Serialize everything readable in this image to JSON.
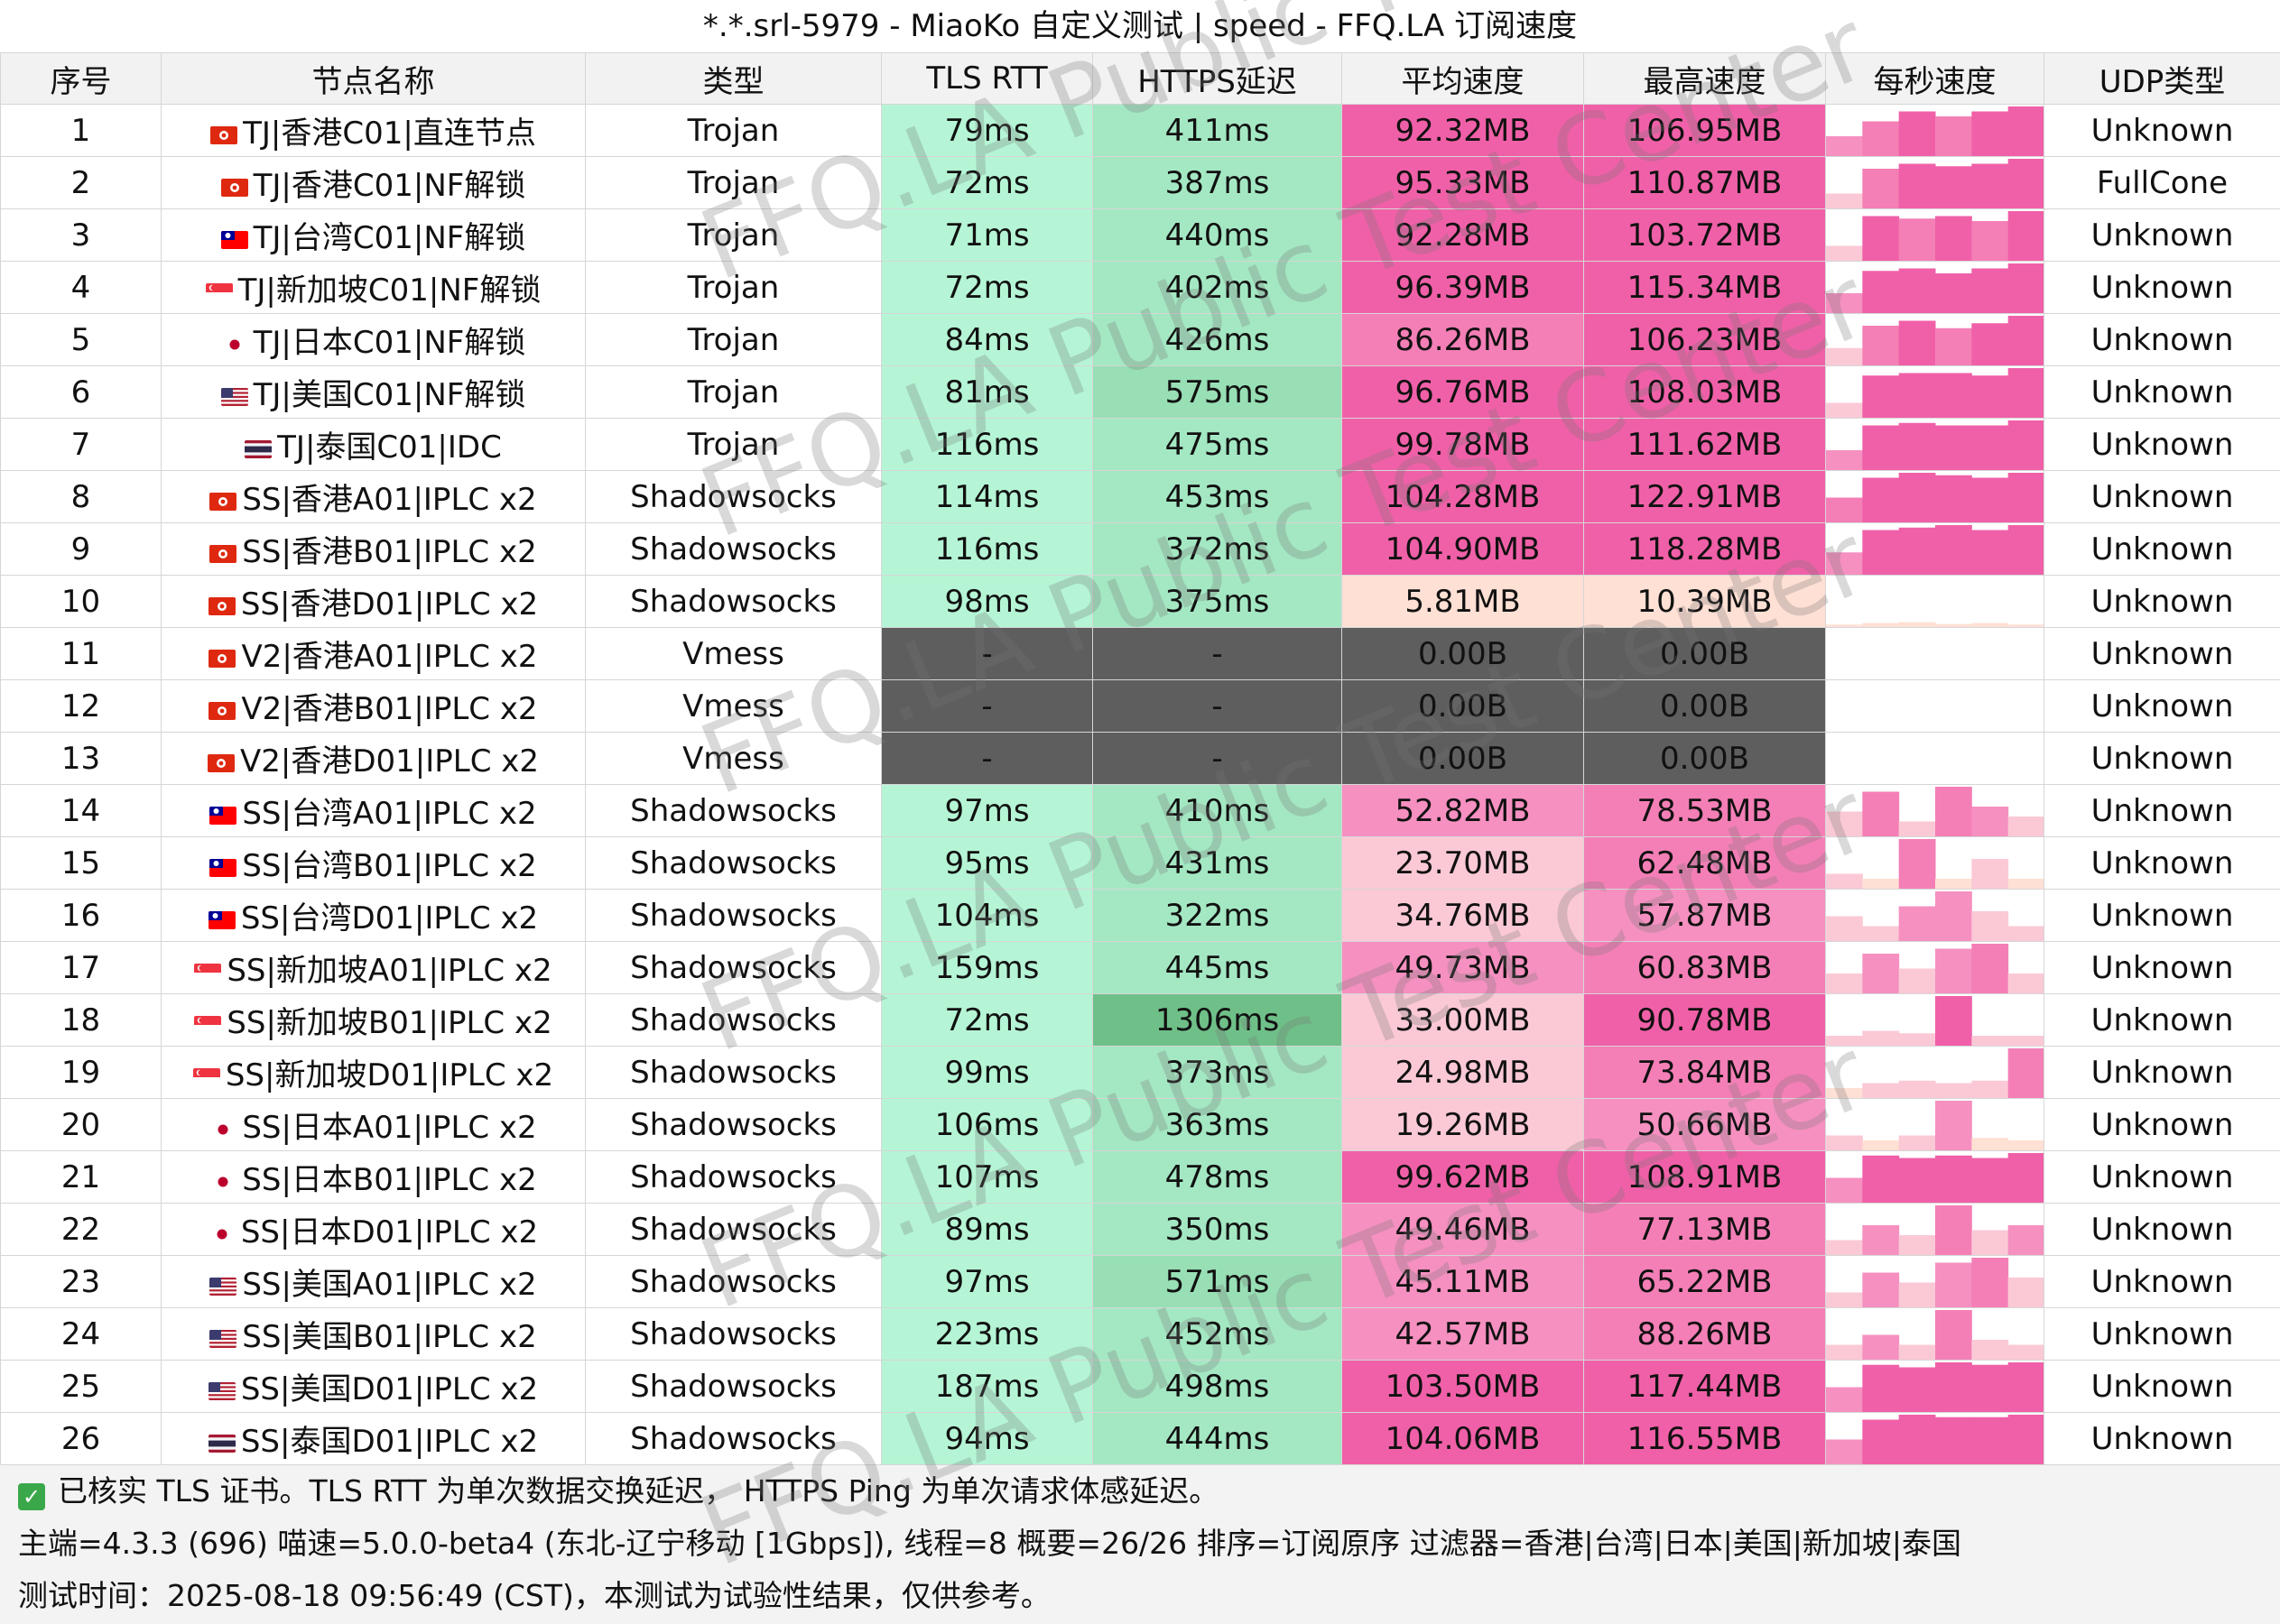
{
  "title": "*.*.srl-5979 - MiaoKo 自定义测试 | speed - FFQ.LA 订阅速度",
  "headers": [
    "序号",
    "节点名称",
    "类型",
    "TLS RTT",
    "HTTPS延迟",
    "平均速度",
    "最高速度",
    "每秒速度",
    "UDP类型"
  ],
  "rows": [
    {
      "id": "1",
      "flag": "hk",
      "name": "TJ|香港C01|直连节点",
      "type": "Trojan",
      "tls": "79ms",
      "https": "411ms",
      "avg": "92.32MB",
      "max": "106.95MB",
      "udp": "Unknown",
      "spark": [
        0.4,
        0.7,
        0.9,
        0.8,
        0.9,
        1.0
      ]
    },
    {
      "id": "2",
      "flag": "hk",
      "name": "TJ|香港C01|NF解锁",
      "type": "Trojan",
      "tls": "72ms",
      "https": "387ms",
      "avg": "95.33MB",
      "max": "110.87MB",
      "udp": "FullCone",
      "spark": [
        0.3,
        0.8,
        0.9,
        0.85,
        0.9,
        1.0
      ]
    },
    {
      "id": "3",
      "flag": "tw",
      "name": "TJ|台湾C01|NF解锁",
      "type": "Trojan",
      "tls": "71ms",
      "https": "440ms",
      "avg": "92.28MB",
      "max": "103.72MB",
      "udp": "Unknown",
      "spark": [
        0.3,
        0.9,
        0.85,
        0.9,
        0.8,
        1.0
      ]
    },
    {
      "id": "4",
      "flag": "sg",
      "name": "TJ|新加坡C01|NF解锁",
      "type": "Trojan",
      "tls": "72ms",
      "https": "402ms",
      "avg": "96.39MB",
      "max": "115.34MB",
      "udp": "Unknown",
      "spark": [
        0.4,
        0.85,
        0.9,
        0.8,
        0.9,
        1.0
      ]
    },
    {
      "id": "5",
      "flag": "jp",
      "name": "TJ|日本C01|NF解锁",
      "type": "Trojan",
      "tls": "84ms",
      "https": "426ms",
      "avg": "86.26MB",
      "max": "106.23MB",
      "udp": "Unknown",
      "spark": [
        0.35,
        0.8,
        0.9,
        0.75,
        0.85,
        1.0
      ]
    },
    {
      "id": "6",
      "flag": "us",
      "name": "TJ|美国C01|NF解锁",
      "type": "Trojan",
      "tls": "81ms",
      "https": "575ms",
      "avg": "96.76MB",
      "max": "108.03MB",
      "udp": "Unknown",
      "spark": [
        0.3,
        0.85,
        0.9,
        0.9,
        0.85,
        1.0
      ]
    },
    {
      "id": "7",
      "flag": "th",
      "name": "TJ|泰国C01|IDC",
      "type": "Trojan",
      "tls": "116ms",
      "https": "475ms",
      "avg": "99.78MB",
      "max": "111.62MB",
      "udp": "Unknown",
      "spark": [
        0.4,
        0.9,
        0.95,
        0.9,
        0.9,
        1.0
      ]
    },
    {
      "id": "8",
      "flag": "hk",
      "name": "SS|香港A01|IPLC x2",
      "type": "Shadowsocks",
      "tls": "114ms",
      "https": "453ms",
      "avg": "104.28MB",
      "max": "122.91MB",
      "udp": "Unknown",
      "spark": [
        0.5,
        0.9,
        1.0,
        0.95,
        0.9,
        1.0
      ]
    },
    {
      "id": "9",
      "flag": "hk",
      "name": "SS|香港B01|IPLC x2",
      "type": "Shadowsocks",
      "tls": "116ms",
      "https": "372ms",
      "avg": "104.90MB",
      "max": "118.28MB",
      "udp": "Unknown",
      "spark": [
        0.45,
        0.9,
        0.95,
        1.0,
        0.9,
        1.0
      ]
    },
    {
      "id": "10",
      "flag": "hk",
      "name": "SS|香港D01|IPLC x2",
      "type": "Shadowsocks",
      "tls": "98ms",
      "https": "375ms",
      "avg": "5.81MB",
      "max": "10.39MB",
      "udp": "Unknown",
      "spark": [
        0.05,
        0.08,
        0.1,
        0.06,
        0.08,
        0.05
      ]
    },
    {
      "id": "11",
      "flag": "hk",
      "name": "V2|香港A01|IPLC x2",
      "type": "Vmess",
      "tls": "-",
      "https": "-",
      "avg": "0.00B",
      "max": "0.00B",
      "udp": "Unknown",
      "spark": []
    },
    {
      "id": "12",
      "flag": "hk",
      "name": "V2|香港B01|IPLC x2",
      "type": "Vmess",
      "tls": "-",
      "https": "-",
      "avg": "0.00B",
      "max": "0.00B",
      "udp": "Unknown",
      "spark": []
    },
    {
      "id": "13",
      "flag": "hk",
      "name": "V2|香港D01|IPLC x2",
      "type": "Vmess",
      "tls": "-",
      "https": "-",
      "avg": "0.00B",
      "max": "0.00B",
      "udp": "Unknown",
      "spark": []
    },
    {
      "id": "14",
      "flag": "tw",
      "name": "SS|台湾A01|IPLC x2",
      "type": "Shadowsocks",
      "tls": "97ms",
      "https": "410ms",
      "avg": "52.82MB",
      "max": "78.53MB",
      "udp": "Unknown",
      "spark": [
        0.5,
        0.9,
        0.3,
        1.0,
        0.6,
        0.4
      ]
    },
    {
      "id": "15",
      "flag": "tw",
      "name": "SS|台湾B01|IPLC x2",
      "type": "Shadowsocks",
      "tls": "95ms",
      "https": "431ms",
      "avg": "23.70MB",
      "max": "62.48MB",
      "udp": "Unknown",
      "spark": [
        0.3,
        0.2,
        1.0,
        0.2,
        0.6,
        0.2
      ]
    },
    {
      "id": "16",
      "flag": "tw",
      "name": "SS|台湾D01|IPLC x2",
      "type": "Shadowsocks",
      "tls": "104ms",
      "https": "322ms",
      "avg": "34.76MB",
      "max": "57.87MB",
      "udp": "Unknown",
      "spark": [
        0.5,
        0.3,
        0.7,
        1.0,
        0.6,
        0.3
      ]
    },
    {
      "id": "17",
      "flag": "sg",
      "name": "SS|新加坡A01|IPLC x2",
      "type": "Shadowsocks",
      "tls": "159ms",
      "https": "445ms",
      "avg": "49.73MB",
      "max": "60.83MB",
      "udp": "Unknown",
      "spark": [
        0.4,
        0.8,
        0.5,
        0.9,
        1.0,
        0.4
      ]
    },
    {
      "id": "18",
      "flag": "sg",
      "name": "SS|新加坡B01|IPLC x2",
      "type": "Shadowsocks",
      "tls": "72ms",
      "https": "1306ms",
      "avg": "33.00MB",
      "max": "90.78MB",
      "udp": "Unknown",
      "spark": [
        0.2,
        0.3,
        0.25,
        1.0,
        0.2,
        0.2
      ]
    },
    {
      "id": "19",
      "flag": "sg",
      "name": "SS|新加坡D01|IPLC x2",
      "type": "Shadowsocks",
      "tls": "99ms",
      "https": "373ms",
      "avg": "24.98MB",
      "max": "73.84MB",
      "udp": "Unknown",
      "spark": [
        0.2,
        0.3,
        0.35,
        0.3,
        0.35,
        1.0
      ]
    },
    {
      "id": "20",
      "flag": "jp",
      "name": "SS|日本A01|IPLC x2",
      "type": "Shadowsocks",
      "tls": "106ms",
      "https": "363ms",
      "avg": "19.26MB",
      "max": "50.66MB",
      "udp": "Unknown",
      "spark": [
        0.3,
        0.2,
        0.3,
        1.0,
        0.25,
        0.2
      ]
    },
    {
      "id": "21",
      "flag": "jp",
      "name": "SS|日本B01|IPLC x2",
      "type": "Shadowsocks",
      "tls": "107ms",
      "https": "478ms",
      "avg": "99.62MB",
      "max": "108.91MB",
      "udp": "Unknown",
      "spark": [
        0.5,
        0.95,
        0.9,
        0.95,
        0.9,
        1.0
      ]
    },
    {
      "id": "22",
      "flag": "jp",
      "name": "SS|日本D01|IPLC x2",
      "type": "Shadowsocks",
      "tls": "89ms",
      "https": "350ms",
      "avg": "49.46MB",
      "max": "77.13MB",
      "udp": "Unknown",
      "spark": [
        0.3,
        0.6,
        0.4,
        1.0,
        0.5,
        0.6
      ]
    },
    {
      "id": "23",
      "flag": "us",
      "name": "SS|美国A01|IPLC x2",
      "type": "Shadowsocks",
      "tls": "97ms",
      "https": "571ms",
      "avg": "45.11MB",
      "max": "65.22MB",
      "udp": "Unknown",
      "spark": [
        0.3,
        0.7,
        0.5,
        0.9,
        1.0,
        0.6
      ]
    },
    {
      "id": "24",
      "flag": "us",
      "name": "SS|美国B01|IPLC x2",
      "type": "Shadowsocks",
      "tls": "223ms",
      "https": "452ms",
      "avg": "42.57MB",
      "max": "88.26MB",
      "udp": "Unknown",
      "spark": [
        0.3,
        0.5,
        0.3,
        1.0,
        0.4,
        0.3
      ]
    },
    {
      "id": "25",
      "flag": "us",
      "name": "SS|美国D01|IPLC x2",
      "type": "Shadowsocks",
      "tls": "187ms",
      "https": "498ms",
      "avg": "103.50MB",
      "max": "117.44MB",
      "udp": "Unknown",
      "spark": [
        0.5,
        0.95,
        0.9,
        1.0,
        0.95,
        1.0
      ]
    },
    {
      "id": "26",
      "flag": "th",
      "name": "SS|泰国D01|IPLC x2",
      "type": "Shadowsocks",
      "tls": "94ms",
      "https": "444ms",
      "avg": "104.06MB",
      "max": "116.55MB",
      "udp": "Unknown",
      "spark": [
        0.5,
        0.9,
        1.0,
        0.95,
        0.95,
        1.0
      ]
    }
  ],
  "footer": {
    "line1": "已核实 TLS 证书。TLS RTT 为单次数据交换延迟， HTTPS Ping 为单次请求体感延迟。",
    "line2": "主端=4.3.3 (696) 喵速=5.0.0-beta4 (东北-辽宁移动 [1Gbps]), 线程=8 概要=26/26 排序=订阅原序 过滤器=香港|台湾|日本|美国|新加坡|泰国",
    "line3": "测试时间：2025-08-18 09:56:49 (CST)，本测试为试验性结果，仅供参考。"
  },
  "watermark": "FFQ.LA Public Test Center",
  "colors": {
    "green_light": "#b5f5d5",
    "green_mid": "#a4e8c3",
    "green_dark": "#6fc088",
    "gray_fail": "#5e5e5e",
    "pink_strong": "#f060a8",
    "pink_mid": "#f590c0",
    "pink_light": "#fbc9d6",
    "pink_pale": "#ffe0d4"
  }
}
